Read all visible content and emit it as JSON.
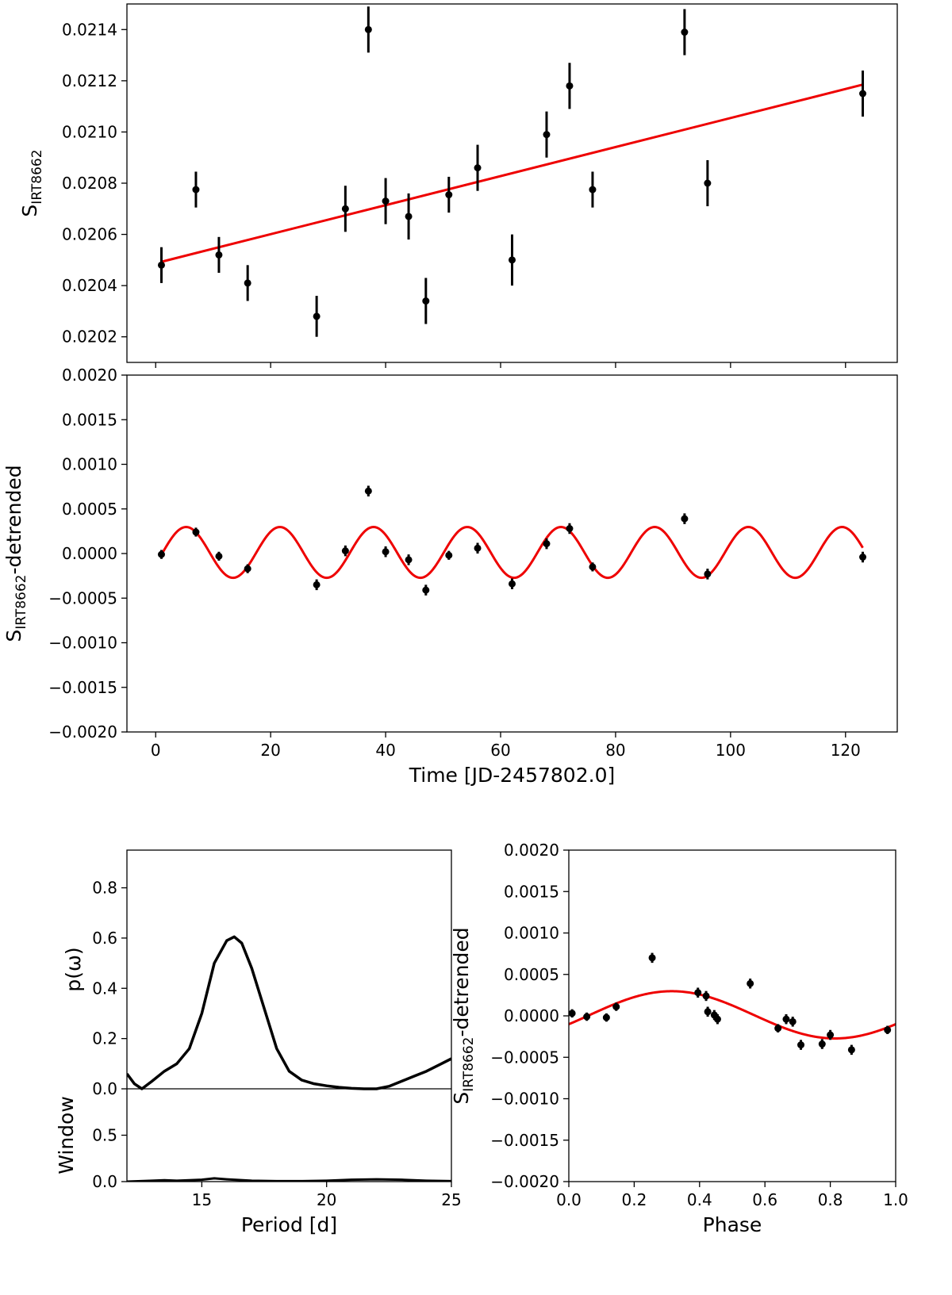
{
  "colors": {
    "model": "#ee0000",
    "points": "#000000",
    "axes": "#000000"
  },
  "chart_data": [
    {
      "id": "raw",
      "type": "scatter",
      "xlim": [
        -5,
        129
      ],
      "ylim": [
        0.0201,
        0.0215
      ],
      "xticks": [
        0,
        20,
        40,
        60,
        80,
        100,
        120
      ],
      "yticks": [
        0.0202,
        0.0204,
        0.0206,
        0.0208,
        0.021,
        0.0212,
        0.0214
      ],
      "ytick_labels": [
        "0.0202",
        "0.0204",
        "0.0206",
        "0.0208",
        "0.0210",
        "0.0212",
        "0.0214"
      ],
      "show_xtick_labels": false,
      "xlabel": "",
      "ylabel_main": "S",
      "ylabel_sub": "IRT8662",
      "ylabel_tail": "",
      "points": {
        "x": [
          1,
          7,
          11,
          16,
          28,
          33,
          37,
          40,
          44,
          47,
          51,
          56,
          62,
          68,
          72,
          76,
          92,
          96,
          123
        ],
        "y": [
          0.02048,
          0.020775,
          0.02052,
          0.02041,
          0.02028,
          0.0207,
          0.0214,
          0.02073,
          0.02067,
          0.02034,
          0.020755,
          0.02086,
          0.0205,
          0.02099,
          0.02118,
          0.020775,
          0.02139,
          0.0208,
          0.02115
        ],
        "err": [
          7e-05,
          7e-05,
          7e-05,
          7e-05,
          8e-05,
          9e-05,
          9e-05,
          9e-05,
          9e-05,
          9e-05,
          7e-05,
          9e-05,
          0.0001,
          9e-05,
          9e-05,
          7e-05,
          9e-05,
          9e-05,
          9e-05
        ]
      },
      "model": {
        "kind": "linear",
        "x0": 1,
        "x1": 123,
        "y0": 0.020493,
        "y1": 0.021185
      }
    },
    {
      "id": "detrended",
      "type": "scatter",
      "xlim": [
        -5,
        129
      ],
      "ylim": [
        -0.002,
        0.002
      ],
      "xticks": [
        0,
        20,
        40,
        60,
        80,
        100,
        120
      ],
      "yticks": [
        -0.002,
        -0.0015,
        -0.001,
        -0.0005,
        0.0,
        0.0005,
        0.001,
        0.0015,
        0.002
      ],
      "ytick_labels": [
        "−0.0020",
        "−0.0015",
        "−0.0010",
        "−0.0005",
        "0.0000",
        "0.0005",
        "0.0010",
        "0.0015",
        "0.0020"
      ],
      "show_xtick_labels": true,
      "xlabel": "Time [JD-2457802.0]",
      "ylabel_main": "S",
      "ylabel_sub": "IRT8662",
      "ylabel_tail": "-detrended",
      "points": {
        "x": [
          1,
          7,
          11,
          16,
          28,
          33,
          37,
          40,
          44,
          47,
          51,
          56,
          62,
          68,
          72,
          76,
          92,
          96,
          123
        ],
        "y": [
          -1e-05,
          0.00024,
          -3e-05,
          -0.00017,
          -0.00035,
          3e-05,
          0.0007,
          2e-05,
          -7e-05,
          -0.00041,
          -2e-05,
          6e-05,
          -0.00034,
          0.00011,
          0.00028,
          -0.00015,
          0.00039,
          -0.00023,
          -4e-05
        ],
        "err": [
          5e-05,
          5e-05,
          5e-05,
          5e-05,
          6e-05,
          6e-05,
          6e-05,
          6e-05,
          6e-05,
          6e-05,
          5e-05,
          6e-05,
          6e-05,
          6e-05,
          6e-05,
          5e-05,
          6e-05,
          6e-05,
          6e-05
        ]
      },
      "model": {
        "kind": "sine",
        "x0": 1,
        "x1": 123,
        "amp": 0.000285,
        "offset": 1.25e-05,
        "period": 16.3,
        "peak_x": 5.3
      }
    },
    {
      "id": "periodogram",
      "type": "line",
      "xlim": [
        12,
        25
      ],
      "xticks": [
        15,
        20,
        25
      ],
      "xlabel": "Period [d]",
      "upper": {
        "ylim": [
          0.0,
          0.95
        ],
        "yticks": [
          0.0,
          0.2,
          0.4,
          0.6,
          0.8
        ],
        "ytick_labels": [
          "0.0",
          "0.2",
          "0.4",
          "0.6",
          "0.8"
        ],
        "ylabel": "p(ω)",
        "period": [
          12,
          12.3,
          12.6,
          13.0,
          13.5,
          14.0,
          14.5,
          15.0,
          15.5,
          16.0,
          16.3,
          16.6,
          17.0,
          17.5,
          18.0,
          18.5,
          19.0,
          19.5,
          20.0,
          20.5,
          21.0,
          21.5,
          22.0,
          22.5,
          23.0,
          23.5,
          24.0,
          24.5,
          25.0
        ],
        "power": [
          0.06,
          0.02,
          0.0,
          0.03,
          0.07,
          0.1,
          0.16,
          0.3,
          0.5,
          0.59,
          0.605,
          0.58,
          0.48,
          0.32,
          0.16,
          0.07,
          0.035,
          0.02,
          0.012,
          0.006,
          0.002,
          0.0,
          0.0,
          0.01,
          0.03,
          0.05,
          0.07,
          0.095,
          0.12
        ]
      },
      "lower": {
        "ylim": [
          0.0,
          1.0
        ],
        "yticks": [
          0.0,
          0.5
        ],
        "ytick_labels": [
          "0.0",
          "0.5"
        ],
        "ylabel": "Window",
        "period": [
          12,
          13,
          13.5,
          14,
          15,
          15.5,
          16,
          17,
          18,
          19,
          20,
          21,
          22,
          23,
          24,
          25
        ],
        "window": [
          0.0,
          0.01,
          0.015,
          0.01,
          0.02,
          0.035,
          0.025,
          0.01,
          0.005,
          0.005,
          0.01,
          0.02,
          0.025,
          0.02,
          0.01,
          0.005
        ]
      }
    },
    {
      "id": "phase",
      "type": "scatter",
      "xlim": [
        0.0,
        1.0
      ],
      "ylim": [
        -0.002,
        0.002
      ],
      "xticks": [
        0.0,
        0.2,
        0.4,
        0.6,
        0.8,
        1.0
      ],
      "xtick_labels": [
        "0.0",
        "0.2",
        "0.4",
        "0.6",
        "0.8",
        "1.0"
      ],
      "yticks": [
        -0.002,
        -0.0015,
        -0.001,
        -0.0005,
        0.0,
        0.0005,
        0.001,
        0.0015,
        0.002
      ],
      "ytick_labels": [
        "−0.0020",
        "−0.0015",
        "−0.0010",
        "−0.0005",
        "0.0000",
        "0.0005",
        "0.0010",
        "0.0015",
        "0.0020"
      ],
      "xlabel": "Phase",
      "ylabel_main": "S",
      "ylabel_sub": "IRT8662",
      "ylabel_tail": "-detrended",
      "points": {
        "x": [
          0.01,
          0.055,
          0.115,
          0.145,
          0.255,
          0.395,
          0.42,
          0.425,
          0.445,
          0.455,
          0.555,
          0.64,
          0.665,
          0.685,
          0.71,
          0.775,
          0.8,
          0.865,
          0.975
        ],
        "y": [
          3e-05,
          -1e-05,
          -2e-05,
          0.00011,
          0.0007,
          0.00028,
          0.00024,
          5e-05,
          1e-05,
          -4e-05,
          0.00039,
          -0.00015,
          -4e-05,
          -7e-05,
          -0.00035,
          -0.00034,
          -0.00023,
          -0.00041,
          -0.00017
        ],
        "err": [
          5e-05,
          5e-05,
          5e-05,
          5e-05,
          6e-05,
          6e-05,
          6e-05,
          6e-05,
          6e-05,
          6e-05,
          6e-05,
          5e-05,
          6e-05,
          6e-05,
          6e-05,
          6e-05,
          6e-05,
          6e-05,
          5e-05
        ]
      },
      "model": {
        "kind": "sine",
        "x0": 0.0,
        "x1": 1.0,
        "amp": 0.000285,
        "offset": 1.25e-05,
        "period": 1.0,
        "peak_x": 0.315
      }
    }
  ]
}
